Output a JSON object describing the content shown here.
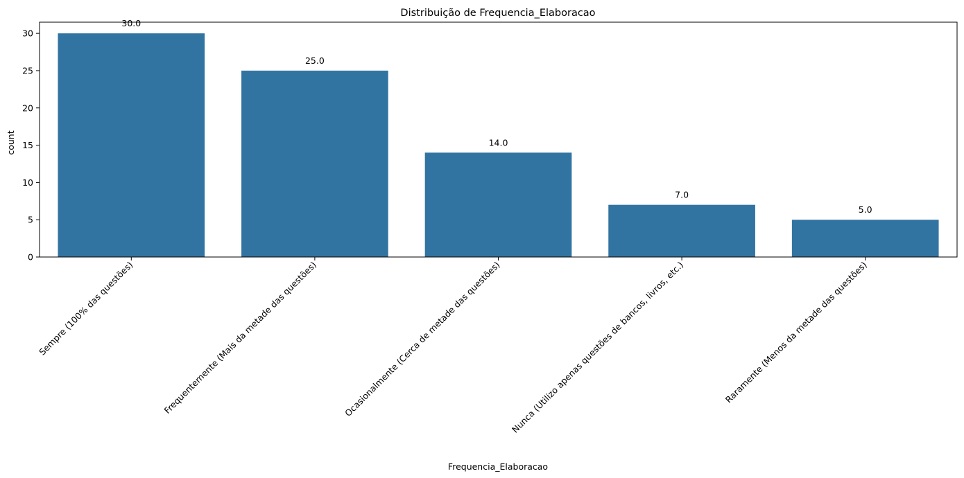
{
  "chart_data": {
    "type": "bar",
    "title": "Distribuição de Frequencia_Elaboracao",
    "xlabel": "Frequencia_Elaboracao",
    "ylabel": "count",
    "categories": [
      "Sempre (100% das questões)",
      "Frequentemente (Mais da metade das questões)",
      "Ocasionalmente (Cerca de metade das questões)",
      "Nunca (Utilizo apenas questões de bancos, livros, etc.)",
      "Raramente (Menos da metade das questões)"
    ],
    "values": [
      30,
      25,
      14,
      7,
      5
    ],
    "value_labels": [
      "30.0",
      "25.0",
      "14.0",
      "7.0",
      "5.0"
    ],
    "yticks": [
      0,
      5,
      10,
      15,
      20,
      25,
      30
    ],
    "ylim": [
      0,
      31.5
    ],
    "grid": false,
    "bar_color": "#3274a1"
  }
}
